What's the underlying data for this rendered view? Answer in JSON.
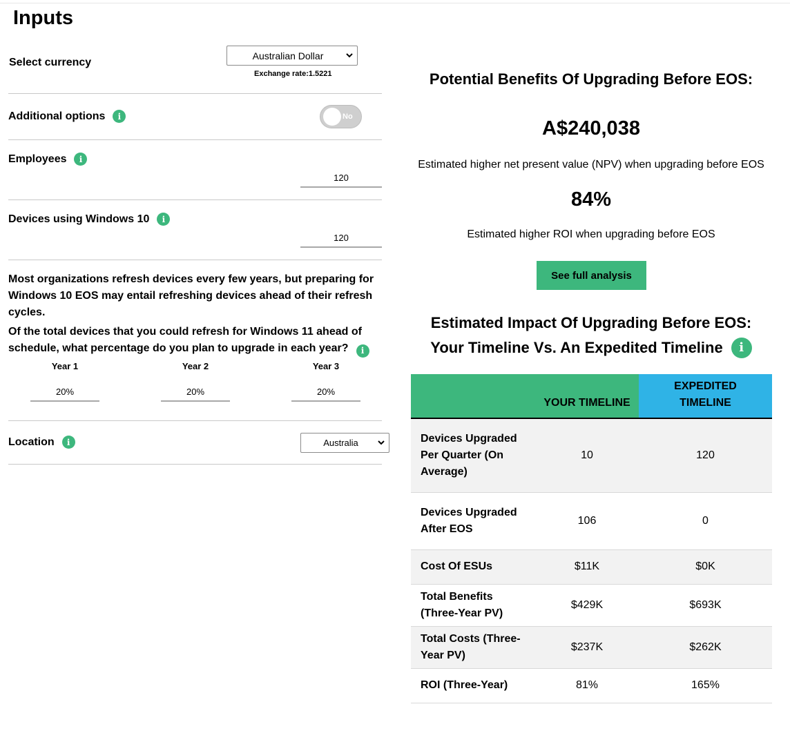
{
  "inputs": {
    "title": "Inputs",
    "currency": {
      "label": "Select currency",
      "value": "Australian Dollar",
      "exchange_rate": "Exchange rate:1.5221"
    },
    "additional_options": {
      "label": "Additional options",
      "toggle_text": "No"
    },
    "employees": {
      "label": "Employees",
      "value": "120"
    },
    "devices": {
      "label": "Devices using Windows 10",
      "value": "120"
    },
    "refresh_text": "Most organizations refresh devices every few years, but preparing for Windows 10 EOS may entail refreshing devices ahead of their refresh cycles.",
    "percentage_question": "Of the total devices that you could refresh for Windows 11 ahead of schedule, what percentage do you plan to upgrade in each year?",
    "years": [
      {
        "label": "Year 1",
        "value": "20%"
      },
      {
        "label": "Year 2",
        "value": "20%"
      },
      {
        "label": "Year 3",
        "value": "20%"
      }
    ],
    "location": {
      "label": "Location",
      "value": "Australia"
    }
  },
  "benefits": {
    "title": "Potential Benefits Of Upgrading Before EOS:",
    "npv_value": "A$240,038",
    "npv_text": "Estimated higher net present value (NPV) when upgrading before EOS",
    "roi_value": "84%",
    "roi_text": "Estimated higher ROI when upgrading before EOS",
    "button": "See full analysis"
  },
  "impact": {
    "title_line1": "Estimated Impact Of Upgrading Before EOS:",
    "title_line2": "Your Timeline Vs. An Expedited Timeline",
    "headers": [
      "",
      "YOUR TIMELINE",
      "EXPEDITED TIMELINE"
    ],
    "rows": [
      {
        "label": "Devices Upgraded Per Quarter (On Average)",
        "yours": "10",
        "expedited": "120"
      },
      {
        "label": "Devices Upgraded After EOS",
        "yours": "106",
        "expedited": "0"
      },
      {
        "label": "Cost Of ESUs",
        "yours": "$11K",
        "expedited": "$0K"
      },
      {
        "label": "Total Benefits (Three-Year PV)",
        "yours": "$429K",
        "expedited": "$693K"
      },
      {
        "label": "Total Costs (Three-Year PV)",
        "yours": "$237K",
        "expedited": "$262K"
      },
      {
        "label": "ROI (Three-Year)",
        "yours": "81%",
        "expedited": "165%"
      }
    ]
  },
  "colors": {
    "accent_green": "#3db77d",
    "accent_blue": "#2fb3e6"
  }
}
